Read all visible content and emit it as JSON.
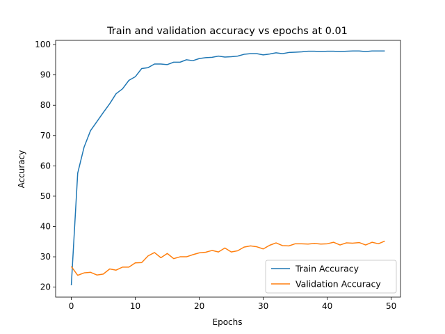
{
  "chart_data": {
    "type": "line",
    "title": "Train and validation accuracy vs epochs at 0.01",
    "xlabel": "Epochs",
    "ylabel": "Accuracy",
    "xlim": [
      -2.45,
      51.45
    ],
    "ylim": [
      16.7,
      101.4
    ],
    "xticks": [
      0,
      10,
      20,
      30,
      40,
      50
    ],
    "yticks": [
      20,
      30,
      40,
      50,
      60,
      70,
      80,
      90,
      100
    ],
    "grid": false,
    "legend_position": "lower right",
    "x": [
      0,
      1,
      2,
      3,
      4,
      5,
      6,
      7,
      8,
      9,
      10,
      11,
      12,
      13,
      14,
      15,
      16,
      17,
      18,
      19,
      20,
      21,
      22,
      23,
      24,
      25,
      26,
      27,
      28,
      29,
      30,
      31,
      32,
      33,
      34,
      35,
      36,
      37,
      38,
      39,
      40,
      41,
      42,
      43,
      44,
      45,
      46,
      47,
      48,
      49
    ],
    "series": [
      {
        "name": "Train Accuracy",
        "color": "#1f77b4",
        "values": [
          20.6,
          57.6,
          66.2,
          71.6,
          74.6,
          77.6,
          80.5,
          83.8,
          85.4,
          88.2,
          89.4,
          92.1,
          92.4,
          93.6,
          93.6,
          93.4,
          94.2,
          94.2,
          95.0,
          94.7,
          95.4,
          95.7,
          95.8,
          96.2,
          95.9,
          96.0,
          96.2,
          96.8,
          97.0,
          97.0,
          96.6,
          96.9,
          97.3,
          97.0,
          97.4,
          97.5,
          97.6,
          97.8,
          97.8,
          97.7,
          97.8,
          97.8,
          97.7,
          97.8,
          97.9,
          97.9,
          97.7,
          97.9,
          97.9,
          97.9
        ]
      },
      {
        "name": "Validation Accuracy",
        "color": "#ff7f0e",
        "values": [
          26.8,
          23.9,
          24.7,
          24.9,
          24.0,
          24.3,
          26.0,
          25.6,
          26.6,
          26.6,
          28.0,
          28.1,
          30.3,
          31.4,
          29.7,
          31.1,
          29.4,
          30.0,
          30.0,
          30.7,
          31.3,
          31.5,
          32.1,
          31.6,
          32.9,
          31.6,
          32.0,
          33.2,
          33.6,
          33.3,
          32.6,
          33.8,
          34.6,
          33.7,
          33.6,
          34.3,
          34.3,
          34.2,
          34.4,
          34.2,
          34.3,
          34.8,
          33.9,
          34.6,
          34.5,
          34.7,
          33.9,
          34.8,
          34.3,
          35.2
        ]
      }
    ]
  }
}
